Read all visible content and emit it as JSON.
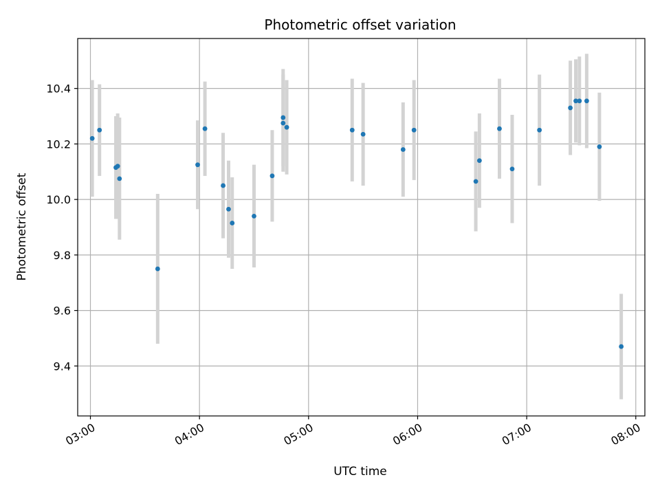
{
  "chart_data": {
    "type": "scatter",
    "title": "Photometric offset variation",
    "xlabel": "UTC time",
    "ylabel": "Photometric offset",
    "x_unit": "UTC time of day (HH:MM)",
    "xlim": [
      "02:53",
      "08:05"
    ],
    "ylim": [
      9.22,
      10.58
    ],
    "x_ticks": [
      "03:00",
      "04:00",
      "05:00",
      "06:00",
      "07:00",
      "08:00"
    ],
    "y_ticks": [
      9.4,
      9.6,
      9.8,
      10.0,
      10.2,
      10.4
    ],
    "y_tick_labels": [
      "9.4",
      "9.6",
      "9.8",
      "10.0",
      "10.2",
      "10.4"
    ],
    "grid": true,
    "errorbar_color": "#d3d3d3",
    "point_color": "#1f77b4",
    "points": [
      {
        "x": "03:01",
        "y": 10.22,
        "err": 0.21
      },
      {
        "x": "03:05",
        "y": 10.25,
        "err": 0.165
      },
      {
        "x": "03:14",
        "y": 10.115,
        "err": 0.185
      },
      {
        "x": "03:15",
        "y": 10.12,
        "err": 0.19
      },
      {
        "x": "03:16",
        "y": 10.075,
        "err": 0.22
      },
      {
        "x": "03:37",
        "y": 9.75,
        "err": 0.27
      },
      {
        "x": "03:59",
        "y": 10.125,
        "err": 0.16
      },
      {
        "x": "04:03",
        "y": 10.255,
        "err": 0.17
      },
      {
        "x": "04:13",
        "y": 10.05,
        "err": 0.19
      },
      {
        "x": "04:16",
        "y": 9.965,
        "err": 0.175
      },
      {
        "x": "04:18",
        "y": 9.915,
        "err": 0.165
      },
      {
        "x": "04:30",
        "y": 9.94,
        "err": 0.185
      },
      {
        "x": "04:40",
        "y": 10.085,
        "err": 0.165
      },
      {
        "x": "04:46",
        "y": 10.295,
        "err": 0.175
      },
      {
        "x": "04:46",
        "y": 10.275,
        "err": 0.175
      },
      {
        "x": "04:48",
        "y": 10.26,
        "err": 0.17
      },
      {
        "x": "05:24",
        "y": 10.25,
        "err": 0.185
      },
      {
        "x": "05:30",
        "y": 10.235,
        "err": 0.185
      },
      {
        "x": "05:52",
        "y": 10.18,
        "err": 0.17
      },
      {
        "x": "05:58",
        "y": 10.25,
        "err": 0.18
      },
      {
        "x": "06:32",
        "y": 10.065,
        "err": 0.18
      },
      {
        "x": "06:34",
        "y": 10.14,
        "err": 0.17
      },
      {
        "x": "06:45",
        "y": 10.255,
        "err": 0.18
      },
      {
        "x": "06:52",
        "y": 10.11,
        "err": 0.195
      },
      {
        "x": "07:07",
        "y": 10.25,
        "err": 0.2
      },
      {
        "x": "07:24",
        "y": 10.33,
        "err": 0.17
      },
      {
        "x": "07:27",
        "y": 10.355,
        "err": 0.15
      },
      {
        "x": "07:29",
        "y": 10.355,
        "err": 0.16
      },
      {
        "x": "07:33",
        "y": 10.355,
        "err": 0.17
      },
      {
        "x": "07:40",
        "y": 10.19,
        "err": 0.195
      },
      {
        "x": "07:52",
        "y": 9.47,
        "err": 0.19
      }
    ]
  }
}
